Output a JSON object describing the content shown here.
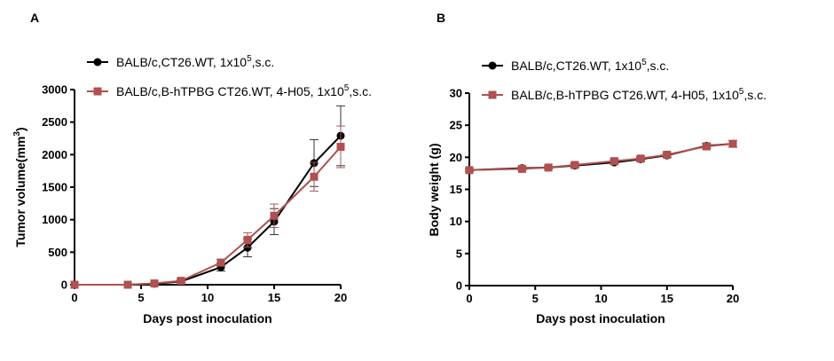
{
  "chart_data": [
    {
      "panel": "A",
      "type": "line",
      "xlabel": "Days post inoculation",
      "ylabel": "Tumor volume(mm",
      "ylabel_sup": "3",
      "ylabel_end": ")",
      "xlim": [
        0,
        20
      ],
      "ylim": [
        0,
        3000
      ],
      "xticks": [
        0,
        5,
        10,
        15,
        20
      ],
      "yticks": [
        0,
        500,
        1000,
        1500,
        2000,
        2500,
        3000
      ],
      "grid": false,
      "legend_position": "top-right",
      "series": [
        {
          "name_pre": "BALB/c,CT26.WT, 1x10",
          "name_sup": "5",
          "name_post": ",s.c.",
          "color": "#000000",
          "marker": "circle",
          "x": [
            0,
            4,
            6,
            8,
            11,
            13,
            15,
            18,
            20
          ],
          "y": [
            0,
            0,
            15,
            50,
            270,
            570,
            970,
            1870,
            2290
          ],
          "err": [
            0,
            0,
            10,
            20,
            60,
            140,
            200,
            360,
            460
          ]
        },
        {
          "name_pre": "BALB/c,B-hTPBG CT26.WT, 4-H05, 1x10",
          "name_sup": "5",
          "name_post": ",s.c.",
          "color": "#b05050",
          "marker": "square",
          "x": [
            0,
            4,
            6,
            8,
            11,
            13,
            15,
            18,
            20
          ],
          "y": [
            0,
            0,
            20,
            60,
            340,
            690,
            1060,
            1660,
            2120
          ],
          "err": [
            0,
            0,
            10,
            20,
            50,
            110,
            180,
            220,
            320
          ]
        }
      ]
    },
    {
      "panel": "B",
      "type": "line",
      "xlabel": "Days post inoculation",
      "ylabel": "Body weight (g)",
      "xlim": [
        0,
        20
      ],
      "ylim": [
        0,
        30
      ],
      "xticks": [
        0,
        5,
        10,
        15,
        20
      ],
      "yticks": [
        0,
        5,
        10,
        15,
        20,
        25,
        30
      ],
      "grid": false,
      "legend_position": "top-right",
      "series": [
        {
          "name_pre": "BALB/c,CT26.WT, 1x10",
          "name_sup": "5",
          "name_post": ",s.c.",
          "color": "#000000",
          "marker": "circle",
          "x": [
            0,
            4,
            6,
            8,
            11,
            13,
            15,
            18,
            20
          ],
          "y": [
            18.0,
            18.3,
            18.4,
            18.7,
            19.2,
            19.7,
            20.3,
            21.8,
            22.1
          ],
          "err": [
            0.2,
            0.2,
            0.2,
            0.3,
            0.3,
            0.3,
            0.3,
            0.4,
            0.5
          ]
        },
        {
          "name_pre": "BALB/c,B-hTPBG CT26.WT, 4-H05, 1x10",
          "name_sup": "5",
          "name_post": ",s.c.",
          "color": "#b05050",
          "marker": "square",
          "x": [
            0,
            4,
            6,
            8,
            11,
            13,
            15,
            18,
            20
          ],
          "y": [
            18.0,
            18.2,
            18.4,
            18.8,
            19.4,
            19.8,
            20.4,
            21.7,
            22.1
          ],
          "err": [
            0.2,
            0.2,
            0.2,
            0.3,
            0.3,
            0.3,
            0.3,
            0.4,
            0.5
          ]
        }
      ]
    }
  ]
}
